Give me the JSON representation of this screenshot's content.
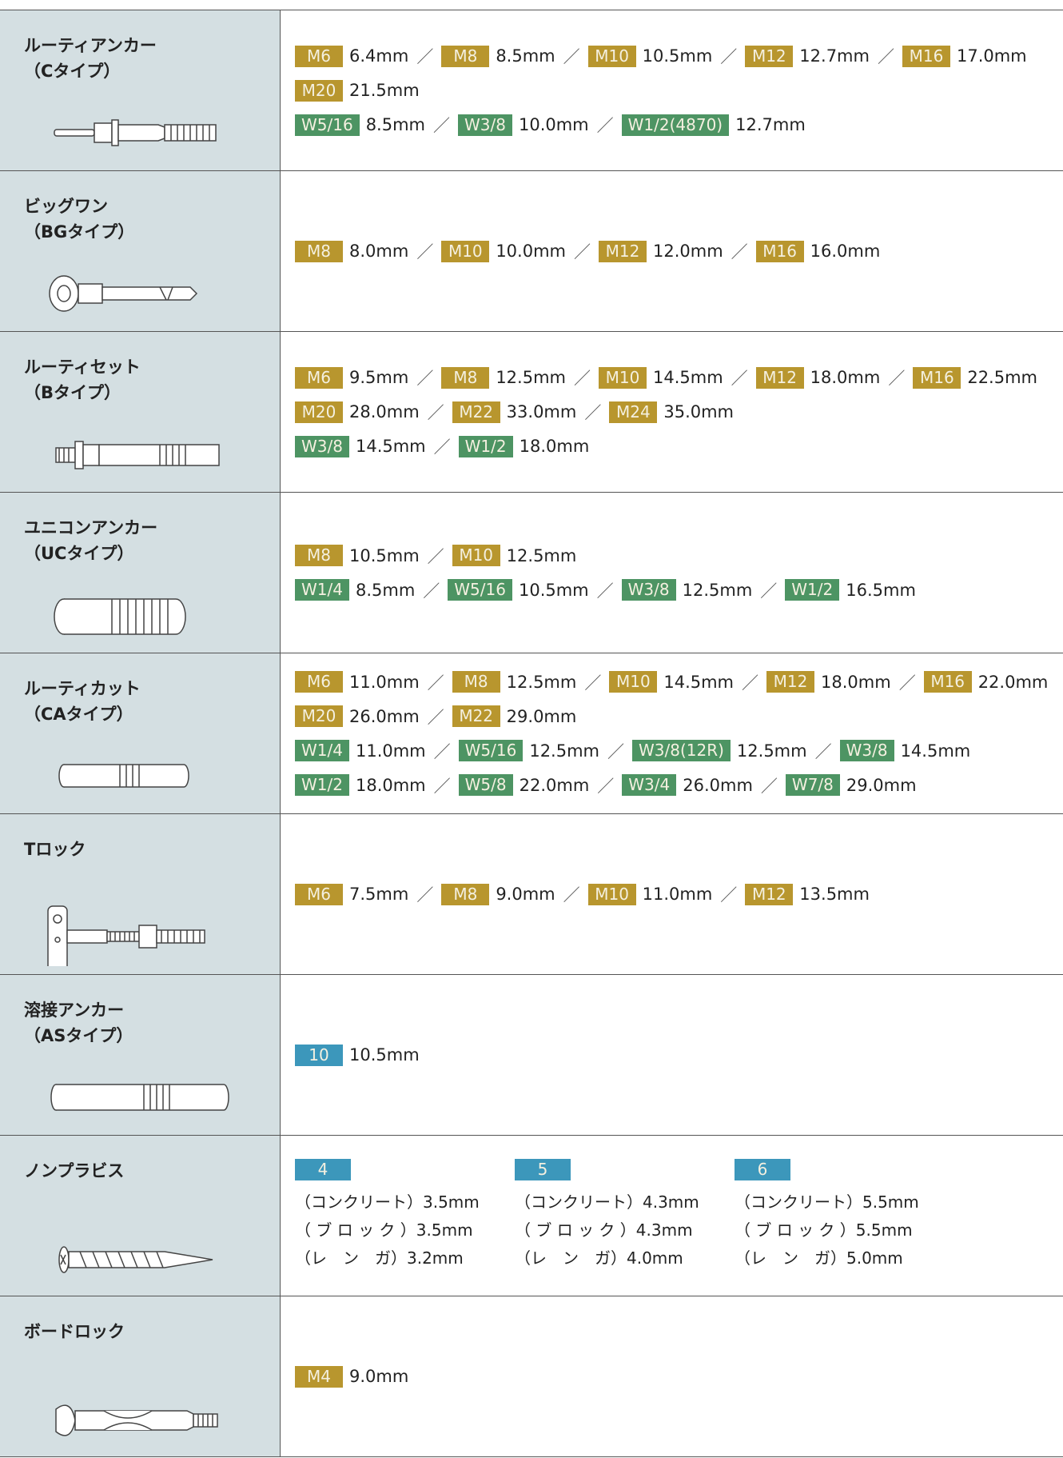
{
  "separator": "／",
  "rows": [
    {
      "name": [
        "ルーティアンカー",
        "（Cタイプ）"
      ],
      "specs": [
        [
          {
            "tag": "M6",
            "size": "6.4mm"
          },
          {
            "tag": "M8",
            "size": "8.5mm"
          },
          {
            "tag": "M10",
            "size": "10.5mm"
          },
          {
            "tag": "M12",
            "size": "12.7mm"
          },
          {
            "tag": "M16",
            "size": "17.0mm"
          }
        ],
        [
          {
            "tag": "M20",
            "size": "21.5mm"
          }
        ],
        [
          {
            "tag": "W5/16",
            "size": "8.5mm"
          },
          {
            "tag": "W3/8",
            "size": "10.0mm"
          },
          {
            "tag": "W1/2(4870)",
            "size": "12.7mm"
          }
        ]
      ]
    },
    {
      "name": [
        "ビッグワン",
        "（BGタイプ）"
      ],
      "specs": [
        [
          {
            "tag": "M8",
            "size": "8.0mm"
          },
          {
            "tag": "M10",
            "size": "10.0mm"
          },
          {
            "tag": "M12",
            "size": "12.0mm"
          },
          {
            "tag": "M16",
            "size": "16.0mm"
          }
        ]
      ]
    },
    {
      "name": [
        "ルーティセット",
        "（Bタイプ）"
      ],
      "specs": [
        [
          {
            "tag": "M6",
            "size": "9.5mm"
          },
          {
            "tag": "M8",
            "size": "12.5mm"
          },
          {
            "tag": "M10",
            "size": "14.5mm"
          },
          {
            "tag": "M12",
            "size": "18.0mm"
          },
          {
            "tag": "M16",
            "size": "22.5mm"
          }
        ],
        [
          {
            "tag": "M20",
            "size": "28.0mm"
          },
          {
            "tag": "M22",
            "size": "33.0mm"
          },
          {
            "tag": "M24",
            "size": "35.0mm"
          }
        ],
        [
          {
            "tag": "W3/8",
            "size": "14.5mm"
          },
          {
            "tag": "W1/2",
            "size": "18.0mm"
          }
        ]
      ]
    },
    {
      "name": [
        "ユニコンアンカー",
        "（UCタイプ）"
      ],
      "specs": [
        [
          {
            "tag": "M8",
            "size": "10.5mm"
          },
          {
            "tag": "M10",
            "size": "12.5mm"
          }
        ],
        [
          {
            "tag": "W1/4",
            "size": "8.5mm"
          },
          {
            "tag": "W5/16",
            "size": "10.5mm"
          },
          {
            "tag": "W3/8",
            "size": "12.5mm"
          },
          {
            "tag": "W1/2",
            "size": "16.5mm"
          }
        ]
      ]
    },
    {
      "name": [
        "ルーティカット",
        "（CAタイプ）"
      ],
      "specs": [
        [
          {
            "tag": "M6",
            "size": "11.0mm"
          },
          {
            "tag": "M8",
            "size": "12.5mm"
          },
          {
            "tag": "M10",
            "size": "14.5mm"
          },
          {
            "tag": "M12",
            "size": "18.0mm"
          },
          {
            "tag": "M16",
            "size": "22.0mm"
          }
        ],
        [
          {
            "tag": "M20",
            "size": "26.0mm"
          },
          {
            "tag": "M22",
            "size": "29.0mm"
          }
        ],
        [
          {
            "tag": "W1/4",
            "size": "11.0mm"
          },
          {
            "tag": "W5/16",
            "size": "12.5mm"
          },
          {
            "tag": "W3/8(12R)",
            "size": "12.5mm"
          },
          {
            "tag": "W3/8",
            "size": "14.5mm"
          }
        ],
        [
          {
            "tag": "W1/2",
            "size": "18.0mm"
          },
          {
            "tag": "W5/8",
            "size": "22.0mm"
          },
          {
            "tag": "W3/4",
            "size": "26.0mm"
          },
          {
            "tag": "W7/8",
            "size": "29.0mm"
          }
        ]
      ]
    },
    {
      "name": [
        "Tロック"
      ],
      "specs": [
        [
          {
            "tag": "M6",
            "size": "7.5mm"
          },
          {
            "tag": "M8",
            "size": "9.0mm"
          },
          {
            "tag": "M10",
            "size": "11.0mm"
          },
          {
            "tag": "M12",
            "size": "13.5mm"
          }
        ]
      ]
    },
    {
      "name": [
        "溶接アンカー",
        "（ASタイプ）"
      ],
      "specs": [
        [
          {
            "tag": "10",
            "size": "10.5mm"
          }
        ]
      ]
    },
    {
      "name": [
        "ノンプラビス"
      ],
      "columns": [
        {
          "tag": "4",
          "lines": [
            {
              "label": "（コンクリート）",
              "size": "3.5mm"
            },
            {
              "label": "（ ブ ロ ッ ク ）",
              "size": "3.5mm"
            },
            {
              "label": "（レ　ン　ガ）",
              "size": "3.2mm"
            }
          ]
        },
        {
          "tag": "5",
          "lines": [
            {
              "label": "（コンクリート）",
              "size": "4.3mm"
            },
            {
              "label": "（ ブ ロ ッ ク ）",
              "size": "4.3mm"
            },
            {
              "label": "（レ　ン　ガ）",
              "size": "4.0mm"
            }
          ]
        },
        {
          "tag": "6",
          "lines": [
            {
              "label": "（コンクリート）",
              "size": "5.5mm"
            },
            {
              "label": "（ ブ ロ ッ ク ）",
              "size": "5.5mm"
            },
            {
              "label": "（レ　ン　ガ）",
              "size": "5.0mm"
            }
          ]
        }
      ]
    },
    {
      "name": [
        "ボードロック"
      ],
      "specs": [
        [
          {
            "tag": "M4",
            "size": "9.0mm"
          }
        ]
      ]
    }
  ]
}
